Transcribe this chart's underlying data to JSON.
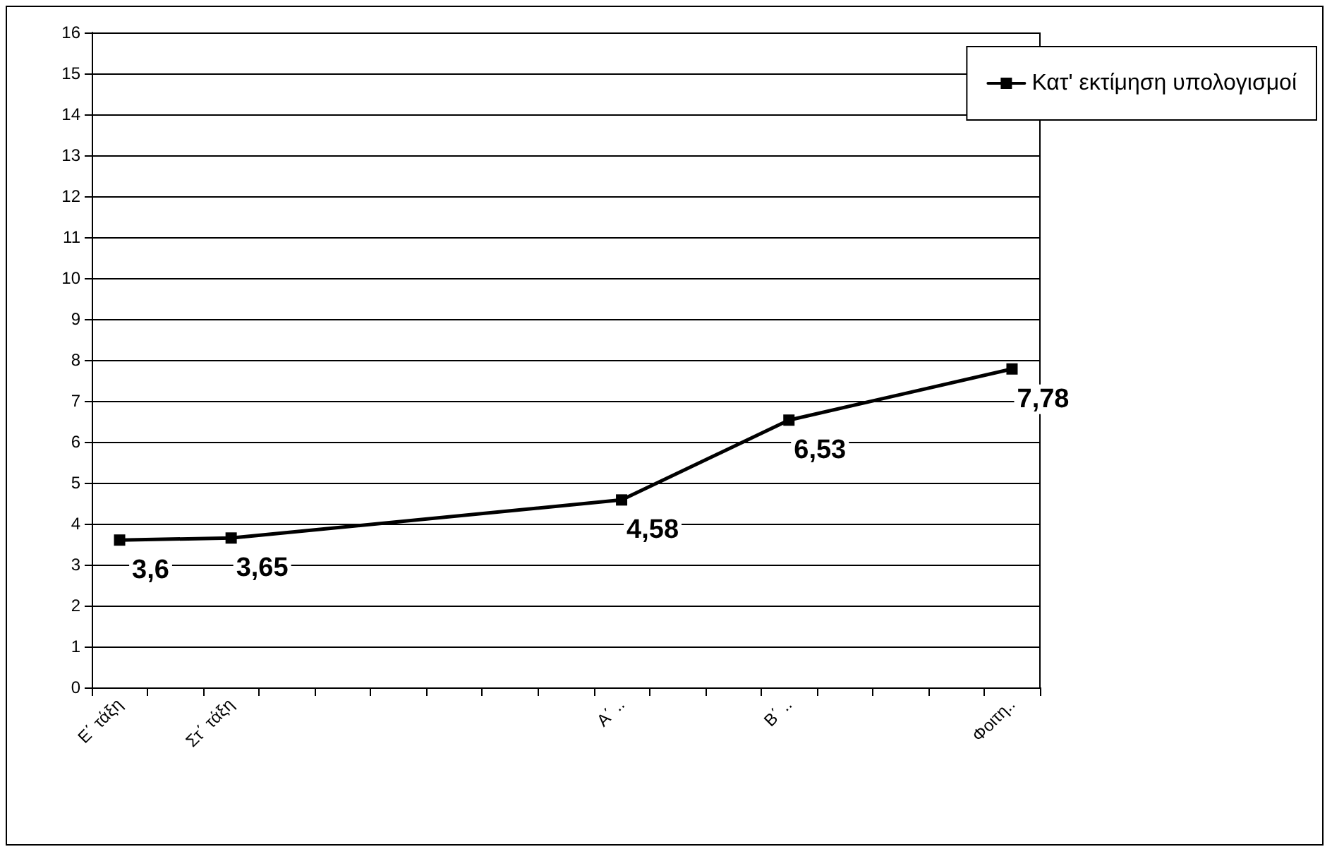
{
  "chart_data": {
    "type": "line",
    "categories": [
      "Ε΄ τάξη",
      null,
      "Στ΄ τάξη",
      null,
      null,
      null,
      null,
      null,
      null,
      "Α΄ ..",
      null,
      null,
      "Β΄ ..",
      null,
      null,
      null,
      "Φοιτη.."
    ],
    "series": [
      {
        "name": "Κατ' εκτίμηση υπολογισμοί",
        "color": "#000000",
        "values": [
          3.6,
          null,
          3.65,
          null,
          null,
          null,
          null,
          null,
          null,
          4.58,
          null,
          null,
          6.53,
          null,
          null,
          null,
          7.78
        ],
        "value_labels": [
          "3,6",
          null,
          "3,65",
          null,
          null,
          null,
          null,
          null,
          null,
          "4,58",
          null,
          null,
          "6,53",
          null,
          null,
          null,
          "7,78"
        ]
      }
    ],
    "ylim": [
      0,
      16
    ],
    "yticks": [
      0,
      1,
      2,
      3,
      4,
      5,
      6,
      7,
      8,
      9,
      10,
      11,
      12,
      13,
      14,
      15,
      16
    ],
    "grid": "y",
    "legend": "top right",
    "marker": "square",
    "line_style": "solid"
  }
}
